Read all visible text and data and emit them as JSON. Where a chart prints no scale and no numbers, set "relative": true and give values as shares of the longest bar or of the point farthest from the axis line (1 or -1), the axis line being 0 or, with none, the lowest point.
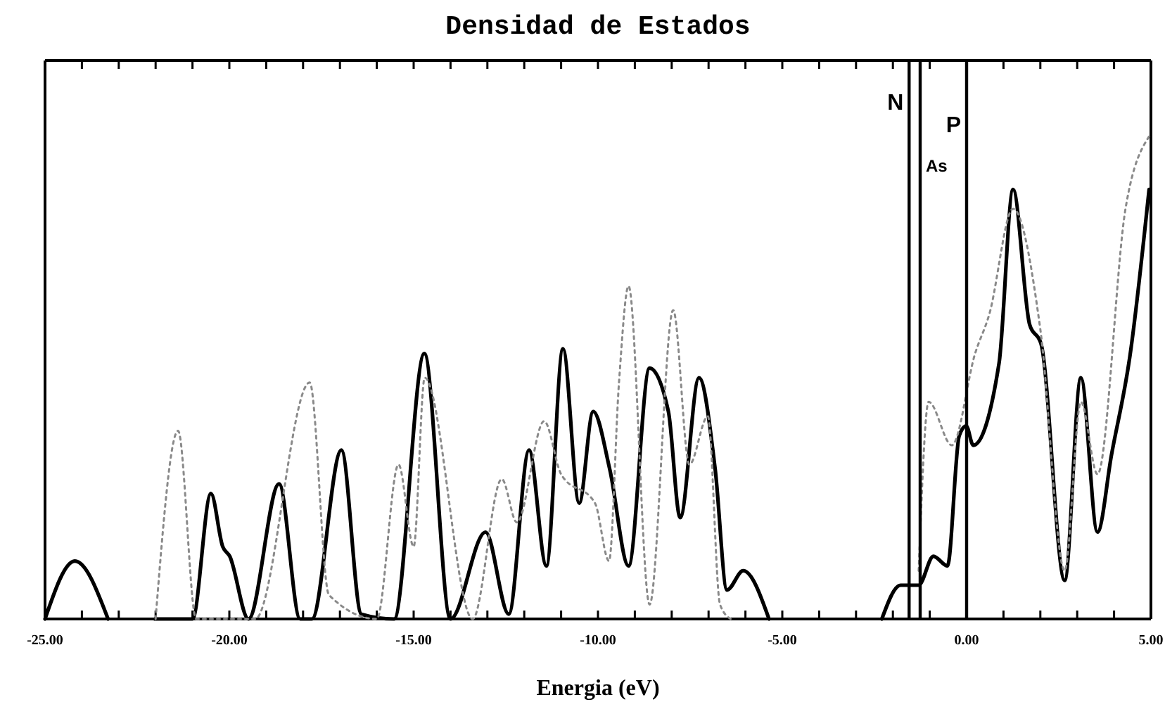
{
  "chart_data": {
    "type": "line",
    "title": "Densidad de Estados",
    "xlabel": "Energia (eV)",
    "relative": true,
    "xlim": [
      -25,
      5
    ],
    "xticks": [
      {
        "value": -25,
        "label": "-25.00"
      },
      {
        "value": -24,
        "label": null
      },
      {
        "value": -23,
        "label": null
      },
      {
        "value": -22,
        "label": null
      },
      {
        "value": -21,
        "label": null
      },
      {
        "value": -20,
        "label": "-20.00"
      },
      {
        "value": -19,
        "label": null
      },
      {
        "value": -18,
        "label": null
      },
      {
        "value": -17,
        "label": null
      },
      {
        "value": -16,
        "label": null
      },
      {
        "value": -15,
        "label": "-15.00"
      },
      {
        "value": -14,
        "label": null
      },
      {
        "value": -13,
        "label": null
      },
      {
        "value": -12,
        "label": null
      },
      {
        "value": -11,
        "label": null
      },
      {
        "value": -10,
        "label": "-10.00"
      },
      {
        "value": -9,
        "label": null
      },
      {
        "value": -8,
        "label": null
      },
      {
        "value": -7,
        "label": null
      },
      {
        "value": -6,
        "label": null
      },
      {
        "value": -5,
        "label": "-5.00"
      },
      {
        "value": -4,
        "label": null
      },
      {
        "value": -3,
        "label": null
      },
      {
        "value": -2,
        "label": null
      },
      {
        "value": -1,
        "label": null
      },
      {
        "value": 0,
        "label": "0.00"
      },
      {
        "value": 1,
        "label": null
      },
      {
        "value": 2,
        "label": null
      },
      {
        "value": 3,
        "label": null
      },
      {
        "value": 4,
        "label": null
      },
      {
        "value": 5,
        "label": "5.00"
      }
    ],
    "tick_labels": "x",
    "grid": false,
    "marker": "none",
    "series": [
      {
        "color": "#000000",
        "line_style": "solid",
        "x": [
          -25,
          -24.19,
          -23.29,
          -22.6,
          -22.02,
          -21.0,
          -20.5,
          -20.18,
          -19.99,
          -19.48,
          -18.65,
          -18.08,
          -17.76,
          -16.96,
          -16.42,
          -15.53,
          -14.71,
          -14.0,
          -13.05,
          -12.42,
          -11.87,
          -11.4,
          -10.95,
          -10.51,
          -10.13,
          -9.68,
          -9.17,
          -8.6,
          -8.09,
          -7.77,
          -7.26,
          -6.82,
          -6.5,
          -6.06,
          -5.36,
          -4.0,
          -2.3,
          -1.79,
          -1.3,
          -0.9,
          -0.52,
          -0.2,
          -0.01,
          0.18,
          0.88,
          1.26,
          1.71,
          2.02,
          2.66,
          3.1,
          3.55,
          3.93,
          4.44,
          4.95
        ],
        "values": [
          0,
          0.12,
          0,
          null,
          0,
          0,
          0.26,
          0.15,
          0.13,
          0,
          0.28,
          0,
          0,
          0.35,
          0.01,
          0,
          0.55,
          0,
          0.18,
          0.01,
          0.35,
          0.11,
          0.56,
          0.24,
          0.43,
          0.31,
          0.11,
          0.52,
          0.43,
          0.21,
          0.5,
          0.31,
          0.06,
          0.1,
          0,
          null,
          0,
          0.07,
          0.07,
          0.13,
          0.11,
          0.38,
          0.4,
          0.36,
          0.53,
          0.89,
          0.61,
          0.57,
          0.08,
          0.5,
          0.18,
          0.34,
          0.55,
          0.89
        ]
      },
      {
        "color": "#8a8a8a",
        "line_style": "dotted",
        "x": [
          -22.0,
          -21.39,
          -20.9,
          -19.3,
          -17.82,
          -17.3,
          -16.0,
          -15.41,
          -15.0,
          -14.7,
          -13.4,
          -12.61,
          -12.2,
          -11.46,
          -11.0,
          -10.08,
          -9.7,
          -9.43,
          -9.17,
          -8.6,
          -7.96,
          -7.52,
          -7.02,
          -6.69,
          -6.4,
          -4.0,
          -1.3,
          -1.03,
          -0.4,
          0.23,
          0.61,
          1.26,
          2.0,
          2.66,
          3.1,
          3.55,
          4.31,
          4.95
        ],
        "values": [
          0,
          0.39,
          0,
          0,
          0.49,
          0.05,
          0,
          0.32,
          0.15,
          0.5,
          0,
          0.29,
          0.2,
          0.41,
          0.3,
          0.24,
          0.12,
          0.49,
          0.69,
          0.03,
          0.64,
          0.32,
          0.42,
          0.03,
          0,
          null,
          0.1,
          0.45,
          0.36,
          0.55,
          0.63,
          0.85,
          0.6,
          0.1,
          0.45,
          0.3,
          0.85,
          1.0
        ]
      }
    ],
    "ref_lines": [
      {
        "axis": "x",
        "value": -1.56,
        "label": "N"
      },
      {
        "axis": "x",
        "value": -1.26,
        "label": "As"
      },
      {
        "axis": "x",
        "value": 0.0,
        "label": "P"
      }
    ]
  }
}
